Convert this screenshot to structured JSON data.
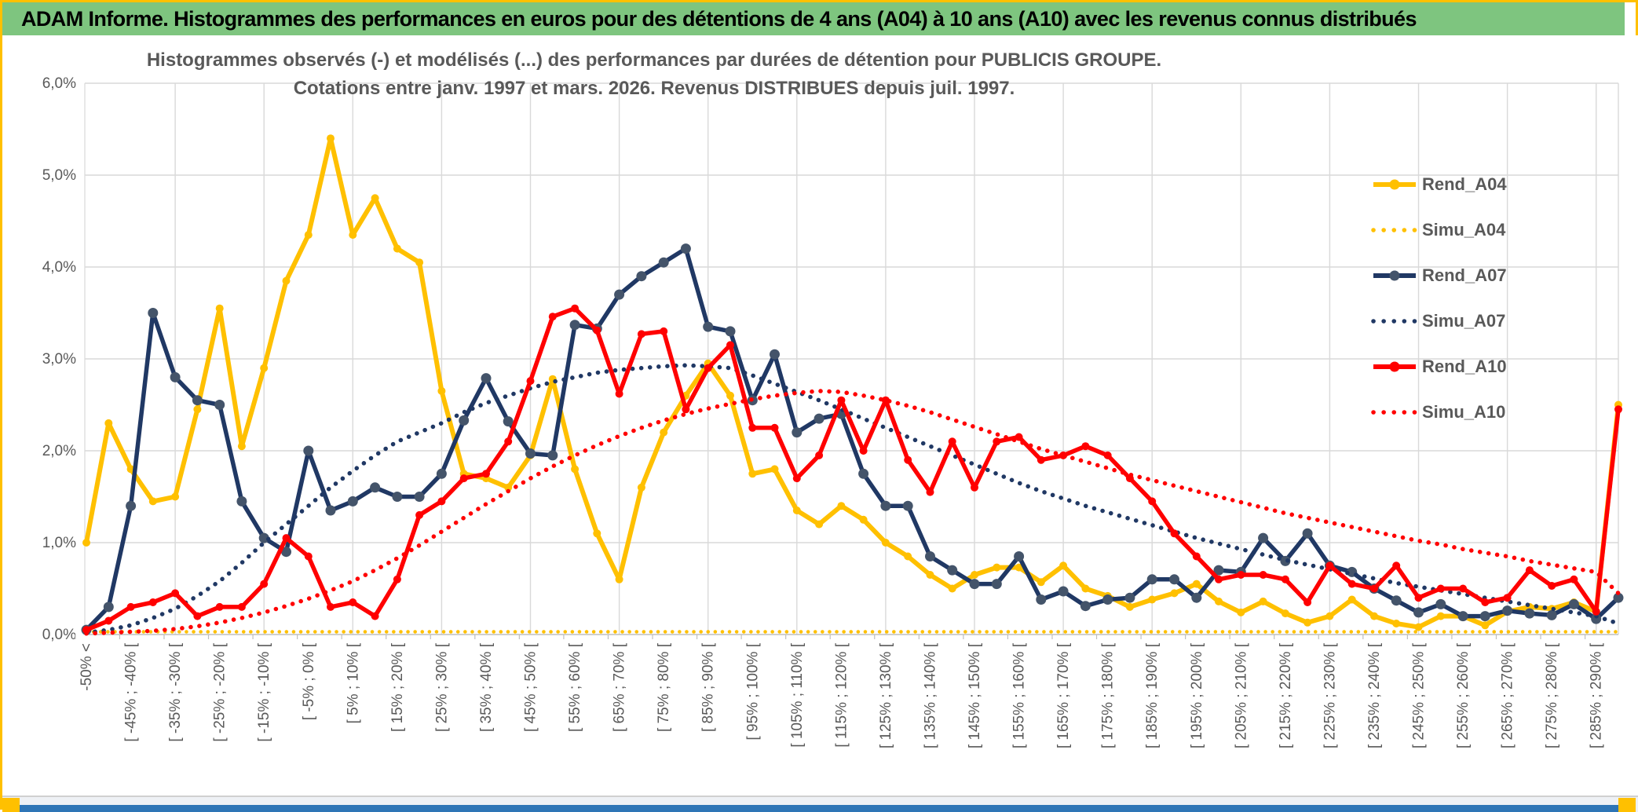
{
  "header": {
    "title": "ADAM Informe. Histogrammes des performances en euros pour des détentions de 4 ans (A04) à 10 ans (A10) avec les revenus connus distribués"
  },
  "chart": {
    "title_line1": "Histogrammes observés (-) et modélisés (...) des performances par durées de détention pour PUBLICIS GROUPE.",
    "title_line2": "Cotations entre janv. 1997 et mars. 2026. Revenus DISTRIBUES depuis juil. 1997."
  },
  "colors": {
    "header_green": "#7EC57F",
    "frame_gold": "#FFC000",
    "title_gray": "#595959",
    "gridline": "#D9D9D9",
    "axis_line": "#BFBFBF",
    "footer_blue": "#2E75B6",
    "series_gold": "#FFC000",
    "series_navy": "#203864",
    "series_navy_marker": "#44546A",
    "series_red": "#FF0000"
  },
  "chart_data": {
    "type": "line",
    "title": "Histogrammes observés (-) et modélisés (...) des performances par durées de détention pour PUBLICIS GROUPE.",
    "subtitle": "Cotations entre janv. 1997 et mars. 2026. Revenus DISTRIBUES depuis juil. 1997.",
    "xlabel": "",
    "ylabel": "",
    "ylim": [
      0,
      6
    ],
    "grid": true,
    "legend_position": "right",
    "y_ticks": [
      "0,0%",
      "1,0%",
      "2,0%",
      "3,0%",
      "4,0%",
      "5,0%",
      "6,0%"
    ],
    "categories": [
      "-50% <",
      "",
      "[ -45% ; -40% [",
      "",
      "[ -35% ; -30% [",
      "",
      "[ -25% ; -20% [",
      "",
      "[ -15% ; -10% [",
      "",
      "[ -5% ; 0% [",
      "",
      "[ 5% ; 10% [",
      "",
      "[ 15% ; 20% [",
      "",
      "[ 25% ; 30% [",
      "",
      "[ 35% ; 40% [",
      "",
      "[ 45% ; 50% [",
      "",
      "[ 55% ; 60% [",
      "",
      "[ 65% ; 70% [",
      "",
      "[ 75% ; 80% [",
      "",
      "[ 85% ; 90% [",
      "",
      "[ 95% ; 100% [",
      "",
      "[ 105% ; 110% [",
      "",
      "[ 115% ; 120% [",
      "",
      "[ 125% ; 130% [",
      "",
      "[ 135% ; 140% [",
      "",
      "[ 145% ; 150% [",
      "",
      "[ 155% ; 160% [",
      "",
      "[ 165% ; 170% [",
      "",
      "[ 175% ; 180% [",
      "",
      "[ 185% ; 190% [",
      "",
      "[ 195% ; 200% [",
      "",
      "[ 205% ; 210% [",
      "",
      "[ 215% ; 220% [",
      "",
      "[ 225% ; 230% [",
      "",
      "[ 235% ; 240% [",
      "",
      "[ 245% ; 250% [",
      "",
      "[ 255% ; 260% [",
      "",
      "[ 265% ; 270% [",
      "",
      "[ 275% ; 280% [",
      "",
      "[ 285% ; 290% [",
      ""
    ],
    "series": [
      {
        "name": "Rend_A04",
        "color": "#FFC000",
        "style": "solid",
        "marker": true,
        "values": [
          1.0,
          2.3,
          1.8,
          1.45,
          1.5,
          2.45,
          3.55,
          2.05,
          2.9,
          3.85,
          4.35,
          5.4,
          4.35,
          4.75,
          4.2,
          4.05,
          2.65,
          1.75,
          1.7,
          1.6,
          1.95,
          2.78,
          1.8,
          1.1,
          0.6,
          1.6,
          2.2,
          2.6,
          2.95,
          2.6,
          1.75,
          1.8,
          1.35,
          1.2,
          1.4,
          1.25,
          1.0,
          0.85,
          0.65,
          0.5,
          0.65,
          0.73,
          0.73,
          0.57,
          0.75,
          0.5,
          0.42,
          0.3,
          0.38,
          0.45,
          0.55,
          0.36,
          0.24,
          0.36,
          0.23,
          0.13,
          0.2,
          0.38,
          0.2,
          0.12,
          0.08,
          0.2,
          0.2,
          0.1,
          0.25,
          0.3,
          0.28,
          0.35,
          0.25,
          2.5
        ]
      },
      {
        "name": "Simu_A04",
        "color": "#FFC000",
        "style": "dotted",
        "marker": false,
        "values": [
          0.03,
          0.03,
          0.03,
          0.03,
          0.03,
          0.03,
          0.03,
          0.03,
          0.03,
          0.03,
          0.03,
          0.03,
          0.03,
          0.03,
          0.03,
          0.03,
          0.03,
          0.03,
          0.03,
          0.03,
          0.03,
          0.03,
          0.03,
          0.03,
          0.03,
          0.03,
          0.03,
          0.03,
          0.03,
          0.03,
          0.03,
          0.03,
          0.03,
          0.03,
          0.03,
          0.03,
          0.03,
          0.03,
          0.03,
          0.03,
          0.03,
          0.03,
          0.03,
          0.03,
          0.03,
          0.03,
          0.03,
          0.03,
          0.03,
          0.03,
          0.03,
          0.03,
          0.03,
          0.03,
          0.03,
          0.03,
          0.03,
          0.03,
          0.03,
          0.03,
          0.03,
          0.03,
          0.03,
          0.03,
          0.03,
          0.03,
          0.03,
          0.03,
          0.03,
          0.03
        ]
      },
      {
        "name": "Rend_A07",
        "color": "#203864",
        "style": "solid",
        "marker": true,
        "values": [
          0.05,
          0.3,
          1.4,
          3.5,
          2.8,
          2.55,
          2.5,
          1.45,
          1.05,
          0.9,
          2.0,
          1.35,
          1.45,
          1.6,
          1.5,
          1.5,
          1.75,
          2.33,
          2.79,
          2.32,
          1.97,
          1.95,
          3.37,
          3.33,
          3.7,
          3.9,
          4.05,
          4.2,
          3.35,
          3.3,
          2.55,
          3.05,
          2.2,
          2.35,
          2.4,
          1.75,
          1.4,
          1.4,
          0.85,
          0.7,
          0.55,
          0.55,
          0.85,
          0.38,
          0.47,
          0.31,
          0.38,
          0.4,
          0.6,
          0.6,
          0.4,
          0.7,
          0.68,
          1.05,
          0.8,
          1.1,
          0.75,
          0.68,
          0.5,
          0.37,
          0.24,
          0.33,
          0.2,
          0.2,
          0.26,
          0.23,
          0.21,
          0.33,
          0.17,
          0.4
        ]
      },
      {
        "name": "Simu_A07",
        "color": "#203864",
        "style": "dotted",
        "marker": false,
        "values": [
          0.02,
          0.05,
          0.1,
          0.18,
          0.28,
          0.42,
          0.58,
          0.78,
          1.0,
          1.2,
          1.4,
          1.6,
          1.78,
          1.95,
          2.1,
          2.2,
          2.3,
          2.42,
          2.52,
          2.6,
          2.68,
          2.75,
          2.8,
          2.85,
          2.88,
          2.9,
          2.92,
          2.93,
          2.92,
          2.9,
          2.82,
          2.73,
          2.64,
          2.55,
          2.45,
          2.35,
          2.25,
          2.15,
          2.05,
          1.95,
          1.85,
          1.75,
          1.65,
          1.56,
          1.48,
          1.4,
          1.33,
          1.26,
          1.19,
          1.12,
          1.05,
          0.99,
          0.93,
          0.87,
          0.81,
          0.76,
          0.71,
          0.66,
          0.61,
          0.56,
          0.52,
          0.48,
          0.44,
          0.4,
          0.36,
          0.32,
          0.28,
          0.24,
          0.2,
          0.12
        ]
      },
      {
        "name": "Rend_A10",
        "color": "#FF0000",
        "style": "solid",
        "marker": true,
        "values": [
          0.05,
          0.15,
          0.3,
          0.35,
          0.45,
          0.2,
          0.3,
          0.3,
          0.55,
          1.05,
          0.85,
          0.3,
          0.35,
          0.2,
          0.6,
          1.3,
          1.45,
          1.7,
          1.75,
          2.1,
          2.76,
          3.46,
          3.55,
          3.31,
          2.62,
          3.27,
          3.3,
          2.45,
          2.9,
          3.15,
          2.25,
          2.25,
          1.7,
          1.95,
          2.55,
          2.0,
          2.55,
          1.9,
          1.55,
          2.1,
          1.6,
          2.1,
          2.15,
          1.9,
          1.95,
          2.05,
          1.95,
          1.7,
          1.45,
          1.1,
          0.85,
          0.6,
          0.65,
          0.65,
          0.6,
          0.35,
          0.75,
          0.55,
          0.5,
          0.75,
          0.4,
          0.5,
          0.5,
          0.35,
          0.4,
          0.7,
          0.53,
          0.6,
          0.25,
          2.45
        ]
      },
      {
        "name": "Simu_A10",
        "color": "#FF0000",
        "style": "dotted",
        "marker": false,
        "values": [
          0.01,
          0.02,
          0.03,
          0.04,
          0.06,
          0.09,
          0.13,
          0.18,
          0.24,
          0.31,
          0.39,
          0.48,
          0.58,
          0.7,
          0.83,
          0.97,
          1.12,
          1.27,
          1.42,
          1.56,
          1.7,
          1.83,
          1.95,
          2.06,
          2.16,
          2.25,
          2.33,
          2.4,
          2.46,
          2.51,
          2.56,
          2.6,
          2.63,
          2.65,
          2.64,
          2.6,
          2.55,
          2.49,
          2.42,
          2.34,
          2.26,
          2.18,
          2.1,
          2.02,
          1.95,
          1.88,
          1.81,
          1.74,
          1.68,
          1.62,
          1.56,
          1.5,
          1.44,
          1.38,
          1.32,
          1.27,
          1.22,
          1.17,
          1.12,
          1.07,
          1.02,
          0.98,
          0.93,
          0.89,
          0.85,
          0.8,
          0.76,
          0.72,
          0.68,
          0.45
        ]
      }
    ]
  }
}
